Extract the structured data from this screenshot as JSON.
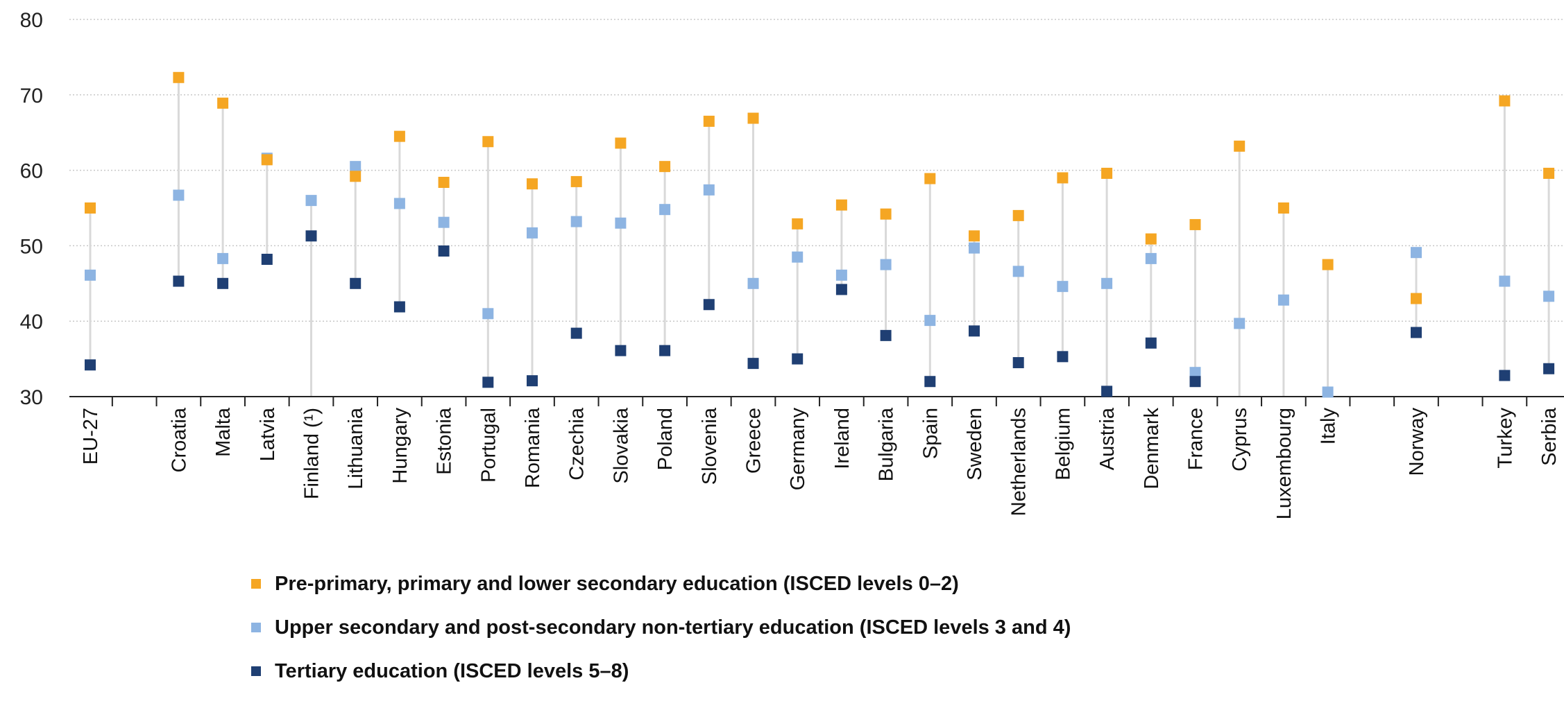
{
  "chart_data": {
    "type": "scatter",
    "title": "",
    "xlabel": "",
    "ylabel": "",
    "ylim": [
      30,
      80
    ],
    "yticks": [
      30,
      40,
      50,
      60,
      70,
      80
    ],
    "grid": true,
    "legend_position": "bottom-left",
    "categories": [
      "EU-27",
      "Croatia",
      "Malta",
      "Latvia",
      "Finland (¹)",
      "Lithuania",
      "Hungary",
      "Estonia",
      "Portugal",
      "Romania",
      "Czechia",
      "Slovakia",
      "Poland",
      "Slovenia",
      "Greece",
      "Germany",
      "Ireland",
      "Bulgaria",
      "Spain",
      "Sweden",
      "Netherlands",
      "Belgium",
      "Austria",
      "Denmark",
      "France",
      "Cyprus",
      "Luxembourg",
      "Italy",
      "Norway",
      "Turkey",
      "Serbia"
    ],
    "slots": [
      0,
      2,
      3,
      4,
      5,
      6,
      7,
      8,
      9,
      10,
      11,
      12,
      13,
      14,
      15,
      16,
      17,
      18,
      19,
      20,
      21,
      22,
      23,
      24,
      25,
      26,
      27,
      28,
      30,
      32,
      33
    ],
    "series": [
      {
        "name": "Pre-primary, primary and lower secondary education (ISCED levels 0–2)",
        "color": "#f5a623",
        "values": [
          55.0,
          72.3,
          68.9,
          61.4,
          null,
          59.2,
          64.5,
          58.4,
          63.8,
          58.2,
          58.5,
          63.6,
          60.5,
          66.5,
          66.9,
          52.9,
          55.4,
          54.2,
          58.9,
          51.3,
          54.0,
          59.0,
          59.6,
          50.9,
          52.8,
          63.2,
          55.0,
          47.5,
          43.0,
          69.2,
          59.6
        ]
      },
      {
        "name": "Upper secondary and post-secondary non-tertiary education (ISCED levels 3 and 4)",
        "color": "#8db4e2",
        "values": [
          46.1,
          56.7,
          48.3,
          61.6,
          56.0,
          60.5,
          55.6,
          53.1,
          41.0,
          51.7,
          53.2,
          53.0,
          54.8,
          57.4,
          45.0,
          48.5,
          46.1,
          47.5,
          40.1,
          49.7,
          46.6,
          44.6,
          45.0,
          48.3,
          33.2,
          39.7,
          42.8,
          30.6,
          49.1,
          45.3,
          43.3
        ]
      },
      {
        "name": "Tertiary education (ISCED levels 5–8)",
        "color": "#1f3f73",
        "values": [
          34.2,
          45.3,
          45.0,
          48.2,
          51.3,
          45.0,
          41.9,
          49.3,
          31.9,
          32.1,
          38.4,
          36.1,
          36.1,
          42.2,
          34.4,
          35.0,
          44.2,
          38.1,
          32.0,
          38.7,
          34.5,
          35.3,
          30.7,
          37.1,
          32.0,
          null,
          null,
          null,
          38.5,
          32.8,
          33.7
        ]
      }
    ]
  }
}
